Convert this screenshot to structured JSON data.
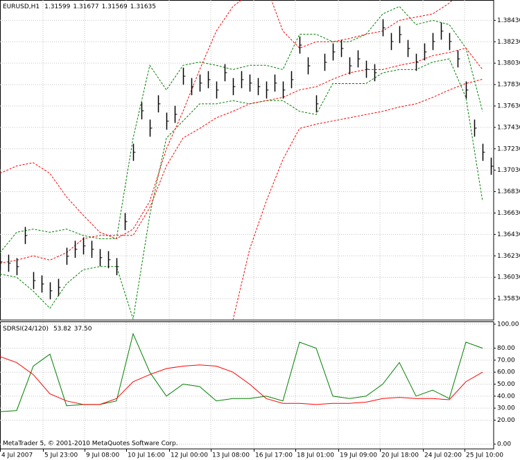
{
  "chart_data": [
    {
      "type": "ohlc",
      "title": "EURUSD,H1",
      "header_values": [
        1.31599,
        1.31677,
        1.31569,
        1.31635
      ],
      "xlim": [
        0,
        356
      ],
      "xticks": [
        {
          "value": 0,
          "label": "4 Jul 2007"
        },
        {
          "value": 31,
          "label": "5 Jul 23:00"
        },
        {
          "value": 61,
          "label": "9 Jul 08:00"
        },
        {
          "value": 91,
          "label": "10 Jul 16:00"
        },
        {
          "value": 122,
          "label": "12 Jul 00:00"
        },
        {
          "value": 152,
          "label": "13 Jul 08:00"
        },
        {
          "value": 183,
          "label": "16 Jul 17:00"
        },
        {
          "value": 213,
          "label": "18 Jul 01:00"
        },
        {
          "value": 244,
          "label": "19 Jul 09:00"
        },
        {
          "value": 274,
          "label": "20 Jul 18:00"
        },
        {
          "value": 305,
          "label": "24 Jul 02:00"
        },
        {
          "value": 335,
          "label": "25 Jul 10:00"
        }
      ],
      "ylim": [
        1.3563,
        1.3862
      ],
      "yticks": [
        {
          "value": 1.3843,
          "label": "1.38430"
        },
        {
          "value": 1.3823,
          "label": "1.38230"
        },
        {
          "value": 1.3803,
          "label": "1.38030"
        },
        {
          "value": 1.3783,
          "label": "1.37830"
        },
        {
          "value": 1.3763,
          "label": "1.37630"
        },
        {
          "value": 1.3743,
          "label": "1.37430"
        },
        {
          "value": 1.3723,
          "label": "1.37230"
        },
        {
          "value": 1.3703,
          "label": "1.37030"
        },
        {
          "value": 1.3683,
          "label": "1.36830"
        },
        {
          "value": 1.3663,
          "label": "1.36630"
        },
        {
          "value": 1.3643,
          "label": "1.36430"
        },
        {
          "value": 1.3623,
          "label": "1.36230"
        },
        {
          "value": 1.3603,
          "label": "1.36030"
        },
        {
          "value": 1.3583,
          "label": "1.35830"
        }
      ],
      "grid": true,
      "color": "#000000",
      "price": {
        "x": [
          0,
          6,
          12,
          18,
          24,
          30,
          36,
          42,
          48,
          54,
          60,
          66,
          72,
          78,
          84,
          90,
          96,
          102,
          108,
          114,
          120,
          126,
          132,
          138,
          144,
          150,
          156,
          162,
          168,
          174,
          180,
          186,
          192,
          198,
          204,
          210,
          216,
          222,
          228,
          234,
          240,
          246,
          252,
          258,
          264,
          270,
          276,
          282,
          288,
          294,
          300,
          306,
          312,
          318,
          324,
          330,
          336,
          342,
          348,
          354
        ],
        "high": [
          1.36254,
          1.36241,
          1.36209,
          1.365,
          1.36079,
          1.36047,
          1.35983,
          1.36015,
          1.36306,
          1.36371,
          1.36403,
          1.36371,
          1.36293,
          1.36274,
          1.36209,
          1.3663,
          1.37277,
          1.37665,
          1.37503,
          1.3773,
          1.37568,
          1.37632,
          1.37988,
          1.37891,
          1.37924,
          1.37956,
          1.37859,
          1.38021,
          1.37891,
          1.37956,
          1.37924,
          1.37891,
          1.37859,
          1.37924,
          1.37859,
          1.37956,
          1.38279,
          1.38085,
          1.3773,
          1.38118,
          1.38215,
          1.38247,
          1.38085,
          1.3815,
          1.38053,
          1.38021,
          1.38441,
          1.38312,
          1.38377,
          1.38247,
          1.38118,
          1.38215,
          1.38312,
          1.38409,
          1.38312,
          1.3815,
          1.37859,
          1.37503,
          1.37277,
          1.37147
        ],
        "low": [
          1.36094,
          1.36081,
          1.36049,
          1.3634,
          1.35919,
          1.35887,
          1.35823,
          1.35855,
          1.36146,
          1.36211,
          1.36243,
          1.36211,
          1.36133,
          1.36114,
          1.36049,
          1.3647,
          1.37117,
          1.37505,
          1.37343,
          1.3757,
          1.37408,
          1.37472,
          1.37828,
          1.37731,
          1.37764,
          1.37796,
          1.37699,
          1.37861,
          1.37731,
          1.37796,
          1.37764,
          1.37731,
          1.37699,
          1.37764,
          1.37699,
          1.37796,
          1.38119,
          1.37925,
          1.3757,
          1.37958,
          1.38055,
          1.38087,
          1.37925,
          1.3799,
          1.37893,
          1.37861,
          1.38281,
          1.38152,
          1.38217,
          1.38087,
          1.37958,
          1.38055,
          1.38152,
          1.38249,
          1.38152,
          1.3799,
          1.37699,
          1.37343,
          1.37117,
          1.36987
        ],
        "close": [
          1.36174,
          1.36161,
          1.36129,
          1.3642,
          1.35999,
          1.35967,
          1.35903,
          1.35935,
          1.36226,
          1.36291,
          1.36323,
          1.36291,
          1.36213,
          1.36194,
          1.36129,
          1.3655,
          1.37197,
          1.37585,
          1.37423,
          1.3765,
          1.37488,
          1.37552,
          1.37908,
          1.37811,
          1.37844,
          1.37876,
          1.37779,
          1.37941,
          1.37811,
          1.37876,
          1.37844,
          1.37811,
          1.37779,
          1.37844,
          1.37779,
          1.37876,
          1.38199,
          1.38005,
          1.3765,
          1.38038,
          1.38135,
          1.38167,
          1.38005,
          1.3807,
          1.37973,
          1.37941,
          1.38361,
          1.38232,
          1.38297,
          1.38167,
          1.38038,
          1.38135,
          1.38232,
          1.38329,
          1.38232,
          1.3807,
          1.37779,
          1.37423,
          1.37197,
          1.37067
        ]
      },
      "bands": [
        {
          "color": "#008000",
          "x": [
            0,
            12,
            24,
            36,
            48,
            60,
            72,
            84,
            96,
            108,
            120,
            132,
            144,
            156,
            168,
            180,
            192,
            204,
            216,
            228,
            240,
            252,
            264,
            276,
            288,
            300,
            312,
            324,
            336,
            348
          ],
          "values": [
            1.3626,
            1.3645,
            1.3648,
            1.3645,
            1.3648,
            1.3642,
            1.3639,
            1.3639,
            1.3733,
            1.3801,
            1.3778,
            1.3801,
            1.3804,
            1.3801,
            1.3797,
            1.3801,
            1.3801,
            1.3797,
            1.383,
            1.383,
            1.3823,
            1.3823,
            1.383,
            1.3849,
            1.3856,
            1.3839,
            1.3843,
            1.3839,
            1.3817,
            1.3758
          ]
        },
        {
          "color": "#008000",
          "x": [
            0,
            12,
            24,
            36,
            48,
            60,
            72,
            84,
            96,
            108,
            120,
            132,
            144,
            156,
            168,
            180,
            192,
            204,
            216,
            228,
            240,
            252,
            264,
            276,
            288,
            300,
            312,
            324,
            336,
            348
          ],
          "values": [
            1.3606,
            1.3603,
            1.359,
            1.3574,
            1.3597,
            1.361,
            1.3613,
            1.3613,
            1.3564,
            1.3661,
            1.3733,
            1.3749,
            1.3765,
            1.3765,
            1.3768,
            1.3765,
            1.3768,
            1.3768,
            1.3758,
            1.3755,
            1.3784,
            1.3784,
            1.3784,
            1.3794,
            1.3797,
            1.3797,
            1.3804,
            1.3807,
            1.3771,
            1.3674
          ]
        },
        {
          "color": "#ff0000",
          "x": [
            0,
            12,
            24,
            36,
            48,
            60,
            72,
            84,
            96,
            108,
            120,
            132,
            144,
            156,
            168,
            180,
            192,
            204,
            216,
            228,
            240,
            252,
            264,
            276,
            288,
            300,
            312,
            324,
            336,
            348
          ],
          "values": [
            1.37,
            1.3707,
            1.371,
            1.37,
            1.3678,
            1.3661,
            1.3645,
            1.3639,
            1.3648,
            1.3674,
            1.3723,
            1.3758,
            1.3797,
            1.3833,
            1.3856,
            1.3868,
            1.3875,
            1.3833,
            1.3817,
            1.3823,
            1.3823,
            1.3826,
            1.383,
            1.3833,
            1.3843,
            1.3846,
            1.3849,
            1.3859,
            1.3875,
            1.3875
          ]
        },
        {
          "color": "#ff0000",
          "x": [
            0,
            12,
            24,
            36,
            48,
            60,
            72,
            84,
            96,
            108,
            120,
            132,
            144,
            156,
            168,
            180,
            192,
            204,
            216,
            228,
            240,
            252,
            264,
            276,
            288,
            300,
            312,
            324,
            336,
            348
          ],
          "values": [
            1.3616,
            1.3619,
            1.3623,
            1.3619,
            1.3626,
            1.3639,
            1.3642,
            1.3642,
            1.3642,
            1.3668,
            1.3707,
            1.3733,
            1.3742,
            1.3752,
            1.3758,
            1.3765,
            1.3768,
            1.3771,
            1.3778,
            1.3781,
            1.3788,
            1.3794,
            1.3797,
            1.3797,
            1.3801,
            1.3804,
            1.381,
            1.3813,
            1.3817,
            1.3797
          ]
        },
        {
          "color": "#ff0000",
          "x": [
            0,
            12,
            24,
            36,
            48,
            60,
            72,
            84,
            96,
            108,
            120,
            132,
            144,
            156,
            168,
            180,
            192,
            204,
            216,
            228,
            240,
            252,
            264,
            276,
            288,
            300,
            312,
            324,
            336,
            348
          ],
          "values": [
            1.3526,
            1.3522,
            1.3519,
            1.3526,
            1.3532,
            1.3538,
            1.3538,
            1.3535,
            1.3532,
            1.3526,
            1.3513,
            1.3526,
            1.3538,
            1.3551,
            1.3563,
            1.3629,
            1.3674,
            1.3713,
            1.3742,
            1.3746,
            1.3749,
            1.3752,
            1.3755,
            1.3758,
            1.3762,
            1.3765,
            1.3771,
            1.3778,
            1.3784,
            1.3788
          ]
        }
      ]
    },
    {
      "type": "line",
      "title": "SDRSI(24/120)",
      "header_values": [
        53.82,
        {
          "value": 37.5,
          "label": "37.50"
        }
      ],
      "xlim": [
        0,
        356
      ],
      "ylim": [
        -4,
        101.7
      ],
      "yticks": [
        {
          "value": 100,
          "label": "100.00"
        },
        {
          "value": 80,
          "label": "80.00"
        },
        {
          "value": 70,
          "label": "70.00"
        },
        {
          "value": 60,
          "label": "60.00"
        },
        {
          "value": 50,
          "label": "50.00"
        },
        {
          "value": 40,
          "label": "40.00"
        },
        {
          "value": 30,
          "label": "30.00"
        },
        {
          "value": 20,
          "label": "20.00"
        },
        {
          "value": 0,
          "label": "0.00"
        }
      ],
      "grid": true,
      "x": [
        0,
        12,
        24,
        36,
        48,
        60,
        72,
        84,
        96,
        108,
        120,
        132,
        144,
        156,
        168,
        180,
        192,
        204,
        216,
        228,
        240,
        252,
        264,
        276,
        288,
        300,
        312,
        324,
        336,
        348
      ],
      "series": [
        {
          "color": "#008000",
          "values": [
            27,
            28,
            65,
            75,
            32,
            33,
            33,
            36,
            92,
            60,
            40,
            50,
            48,
            36,
            38,
            38,
            40,
            36,
            85,
            80,
            40,
            38,
            40,
            50,
            68,
            40,
            45,
            38,
            85,
            80
          ]
        },
        {
          "color": "#ff0000",
          "values": [
            73,
            68,
            58,
            42,
            36,
            33,
            33,
            38,
            52,
            58,
            63,
            65,
            66,
            65,
            60,
            50,
            38,
            34,
            34,
            33,
            34,
            34,
            35,
            38,
            39,
            38,
            38,
            37,
            52,
            60
          ]
        }
      ],
      "footer": "MetaTrader 5, © 2001-2010 MetaQuotes Software Corp."
    }
  ]
}
